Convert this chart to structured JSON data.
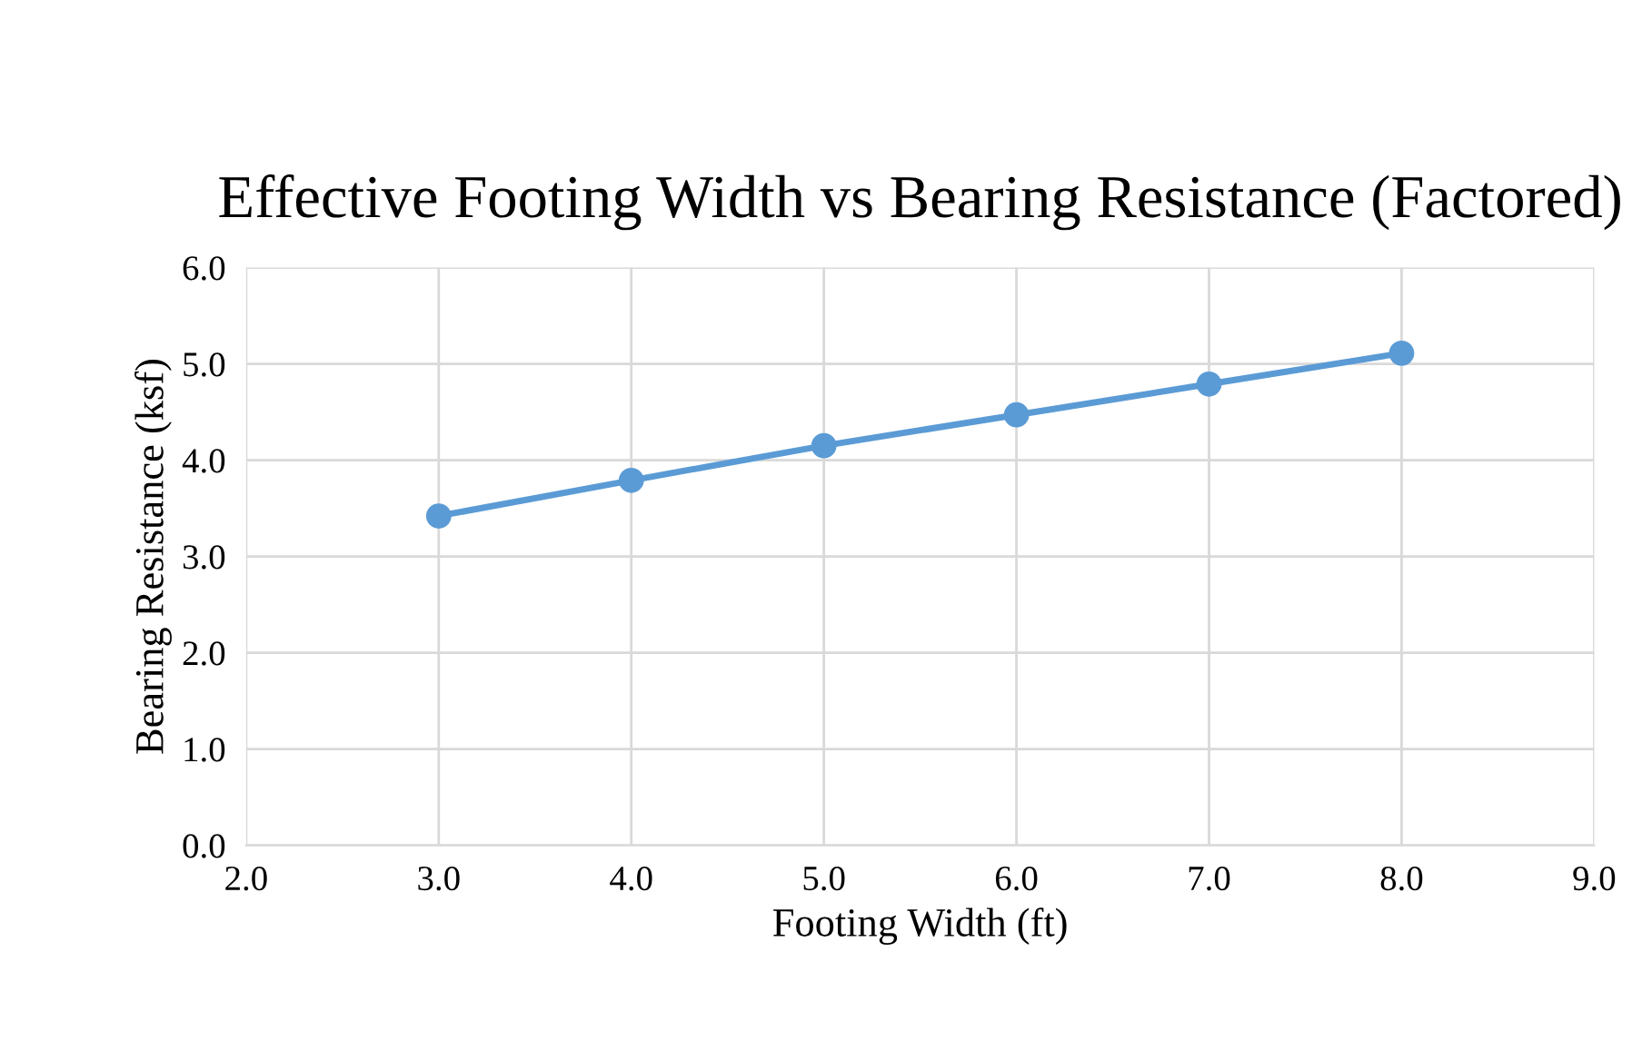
{
  "chart_data": {
    "type": "line",
    "title": "Effective Footing Width vs Bearing Resistance (Factored)",
    "xlabel": "Footing Width (ft)",
    "ylabel": "Bearing Resistance (ksf)",
    "x": [
      3.0,
      4.0,
      5.0,
      6.0,
      7.0,
      8.0
    ],
    "series": [
      {
        "color": "#5b9bd5",
        "values": [
          3.42,
          3.79,
          4.15,
          4.47,
          4.79,
          5.11
        ]
      }
    ],
    "xlim": [
      2.0,
      9.0
    ],
    "xticks": [
      {
        "value": 2,
        "label": "2.0"
      },
      {
        "value": 3,
        "label": "3.0"
      },
      {
        "value": 4,
        "label": "4.0"
      },
      {
        "value": 5,
        "label": "5.0"
      },
      {
        "value": 6,
        "label": "6.0"
      },
      {
        "value": 7,
        "label": "7.0"
      },
      {
        "value": 8,
        "label": "8.0"
      },
      {
        "value": 9,
        "label": "9.0"
      }
    ],
    "ylim": [
      0.0,
      6.0
    ],
    "yticks": [
      {
        "value": 0,
        "label": "0.0"
      },
      {
        "value": 1,
        "label": "1.0"
      },
      {
        "value": 2,
        "label": "2.0"
      },
      {
        "value": 3,
        "label": "3.0"
      },
      {
        "value": 4,
        "label": "4.0"
      },
      {
        "value": 5,
        "label": "5.0"
      },
      {
        "value": 6,
        "label": "6.0"
      }
    ],
    "grid": true,
    "marker": "circle",
    "line_style": "solid",
    "legend": false
  }
}
